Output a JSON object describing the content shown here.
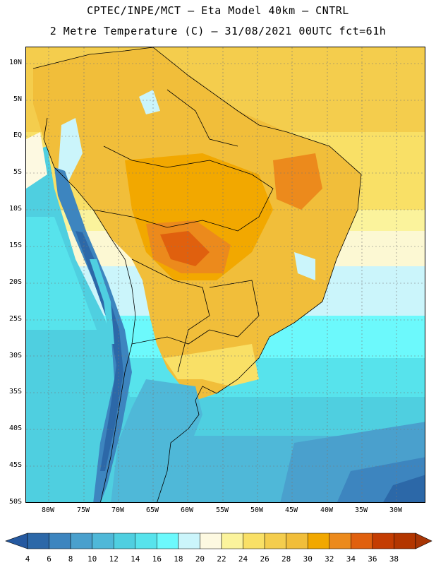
{
  "title_line1": "CPTEC/INPE/MCT –  Eta Model 40km – CNTRL",
  "title_line2": "2 Metre Temperature (C) – 31/08/2021 00UTC fct=61h",
  "map": {
    "region": "South America",
    "variable": "2 Metre Temperature",
    "units": "C",
    "lat_labels": [
      "10N",
      "5N",
      "EQ",
      "5S",
      "10S",
      "15S",
      "20S",
      "25S",
      "30S",
      "35S",
      "40S",
      "45S",
      "50S"
    ],
    "lon_labels": [
      "80W",
      "75W",
      "70W",
      "65W",
      "60W",
      "55W",
      "50W",
      "45W",
      "40W",
      "35W",
      "30W"
    ]
  },
  "colorbar": {
    "labels": [
      "4",
      "6",
      "8",
      "10",
      "12",
      "14",
      "16",
      "18",
      "20",
      "22",
      "24",
      "26",
      "28",
      "30",
      "32",
      "34",
      "36",
      "38"
    ],
    "colors": [
      "#2c68a8",
      "#3d85bf",
      "#4aa0cd",
      "#4fb8d8",
      "#4fcfe0",
      "#57e3ec",
      "#6cf9fc",
      "#cbf5fb",
      "#fdf9e1",
      "#fbf39c",
      "#f9e066",
      "#f4cd4d",
      "#f1be3a",
      "#f2a800",
      "#ec8a1c",
      "#e0600e",
      "#c43d02",
      "#b33600"
    ],
    "low_color": "#2559a0",
    "high_color": "#a83505"
  },
  "colors": {
    "ocean_warm": "#f4cd4d",
    "land_hot": "#e0600e",
    "andes": "#2c68a8",
    "south_ocean": "#3d85bf"
  }
}
